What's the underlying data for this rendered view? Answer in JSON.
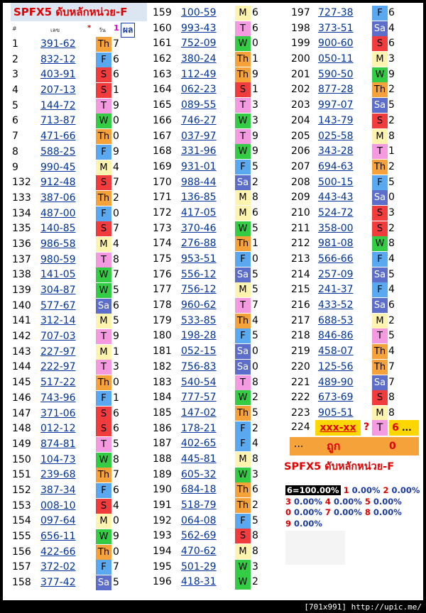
{
  "title": "SPFX5 ดับหลักหน่วย-F",
  "header": {
    "idx": "#",
    "num": "เลข",
    "star": "*",
    "day": "วัน",
    "one": "1",
    "res": "ผล"
  },
  "columns": [
    [
      {
        "i": "1",
        "n": "391-62",
        "d": "Th",
        "g": "7"
      },
      {
        "i": "2",
        "n": "832-12",
        "d": "F",
        "g": "6"
      },
      {
        "i": "3",
        "n": "403-91",
        "d": "S",
        "g": "6"
      },
      {
        "i": "4",
        "n": "207-13",
        "d": "S",
        "g": "1"
      },
      {
        "i": "5",
        "n": "144-72",
        "d": "T",
        "g": "9"
      },
      {
        "i": "6",
        "n": "713-87",
        "d": "W",
        "g": "0"
      },
      {
        "i": "7",
        "n": "471-66",
        "d": "Th",
        "g": "0"
      },
      {
        "i": "8",
        "n": "588-25",
        "d": "F",
        "g": "9"
      },
      {
        "i": "9",
        "n": "990-45",
        "d": "M",
        "g": "4"
      },
      {
        "i": "132",
        "n": "912-48",
        "d": "S",
        "g": "7"
      },
      {
        "i": "133",
        "n": "387-06",
        "d": "Th",
        "g": "2"
      },
      {
        "i": "134",
        "n": "487-00",
        "d": "F",
        "g": "0"
      },
      {
        "i": "135",
        "n": "140-85",
        "d": "S",
        "g": "7"
      },
      {
        "i": "136",
        "n": "986-58",
        "d": "M",
        "g": "4"
      },
      {
        "i": "137",
        "n": "980-59",
        "d": "T",
        "g": "8"
      },
      {
        "i": "138",
        "n": "141-05",
        "d": "W",
        "g": "7"
      },
      {
        "i": "139",
        "n": "304-87",
        "d": "W",
        "g": "5"
      },
      {
        "i": "140",
        "n": "577-67",
        "d": "Sa",
        "g": "6"
      },
      {
        "i": "141",
        "n": "312-14",
        "d": "M",
        "g": "5"
      },
      {
        "i": "142",
        "n": "707-03",
        "d": "T",
        "g": "9"
      },
      {
        "i": "143",
        "n": "227-97",
        "d": "M",
        "g": "1"
      },
      {
        "i": "144",
        "n": "222-97",
        "d": "T",
        "g": "3"
      },
      {
        "i": "145",
        "n": "517-22",
        "d": "Th",
        "g": "0"
      },
      {
        "i": "146",
        "n": "743-96",
        "d": "F",
        "g": "1"
      },
      {
        "i": "147",
        "n": "371-06",
        "d": "S",
        "g": "6"
      },
      {
        "i": "148",
        "n": "012-12",
        "d": "S",
        "g": "6"
      },
      {
        "i": "149",
        "n": "874-81",
        "d": "T",
        "g": "5"
      },
      {
        "i": "150",
        "n": "104-73",
        "d": "W",
        "g": "8"
      },
      {
        "i": "151",
        "n": "239-68",
        "d": "Th",
        "g": "7"
      },
      {
        "i": "152",
        "n": "387-34",
        "d": "F",
        "g": "6"
      },
      {
        "i": "153",
        "n": "008-10",
        "d": "S",
        "g": "4"
      },
      {
        "i": "154",
        "n": "097-64",
        "d": "M",
        "g": "0"
      },
      {
        "i": "155",
        "n": "656-11",
        "d": "W",
        "g": "9"
      },
      {
        "i": "156",
        "n": "422-66",
        "d": "Th",
        "g": "0"
      },
      {
        "i": "157",
        "n": "372-02",
        "d": "F",
        "g": "7"
      },
      {
        "i": "158",
        "n": "377-42",
        "d": "Sa",
        "g": "5"
      }
    ],
    [
      {
        "i": "159",
        "n": "100-59",
        "d": "M",
        "g": "6"
      },
      {
        "i": "160",
        "n": "993-43",
        "d": "T",
        "g": "6"
      },
      {
        "i": "161",
        "n": "752-09",
        "d": "W",
        "g": "0"
      },
      {
        "i": "162",
        "n": "380-24",
        "d": "Th",
        "g": "1"
      },
      {
        "i": "163",
        "n": "112-49",
        "d": "Th",
        "g": "9"
      },
      {
        "i": "164",
        "n": "062-23",
        "d": "S",
        "g": "1"
      },
      {
        "i": "165",
        "n": "089-55",
        "d": "T",
        "g": "3"
      },
      {
        "i": "166",
        "n": "746-27",
        "d": "W",
        "g": "3"
      },
      {
        "i": "167",
        "n": "037-97",
        "d": "T",
        "g": "9"
      },
      {
        "i": "168",
        "n": "331-96",
        "d": "W",
        "g": "9"
      },
      {
        "i": "169",
        "n": "931-01",
        "d": "F",
        "g": "5"
      },
      {
        "i": "170",
        "n": "988-44",
        "d": "Sa",
        "g": "2"
      },
      {
        "i": "171",
        "n": "136-85",
        "d": "M",
        "g": "8"
      },
      {
        "i": "172",
        "n": "417-05",
        "d": "M",
        "g": "6"
      },
      {
        "i": "173",
        "n": "370-46",
        "d": "W",
        "g": "5"
      },
      {
        "i": "174",
        "n": "276-88",
        "d": "Th",
        "g": "1"
      },
      {
        "i": "175",
        "n": "953-51",
        "d": "F",
        "g": "0"
      },
      {
        "i": "176",
        "n": "556-12",
        "d": "Sa",
        "g": "5"
      },
      {
        "i": "177",
        "n": "756-12",
        "d": "M",
        "g": "5"
      },
      {
        "i": "178",
        "n": "960-62",
        "d": "T",
        "g": "7"
      },
      {
        "i": "179",
        "n": "533-85",
        "d": "Th",
        "g": "4"
      },
      {
        "i": "180",
        "n": "198-28",
        "d": "F",
        "g": "5"
      },
      {
        "i": "181",
        "n": "052-15",
        "d": "Sa",
        "g": "0"
      },
      {
        "i": "182",
        "n": "756-83",
        "d": "Sa",
        "g": "0"
      },
      {
        "i": "183",
        "n": "540-54",
        "d": "T",
        "g": "8"
      },
      {
        "i": "184",
        "n": "777-57",
        "d": "W",
        "g": "2"
      },
      {
        "i": "185",
        "n": "147-02",
        "d": "Th",
        "g": "5"
      },
      {
        "i": "186",
        "n": "178-21",
        "d": "F",
        "g": "2"
      },
      {
        "i": "187",
        "n": "402-65",
        "d": "F",
        "g": "4"
      },
      {
        "i": "188",
        "n": "445-81",
        "d": "M",
        "g": "8"
      },
      {
        "i": "189",
        "n": "605-32",
        "d": "W",
        "g": "3"
      },
      {
        "i": "190",
        "n": "684-18",
        "d": "Th",
        "g": "6"
      },
      {
        "i": "191",
        "n": "518-79",
        "d": "Th",
        "g": "2"
      },
      {
        "i": "192",
        "n": "064-08",
        "d": "F",
        "g": "5"
      },
      {
        "i": "193",
        "n": "562-69",
        "d": "S",
        "g": "8"
      },
      {
        "i": "194",
        "n": "470-62",
        "d": "M",
        "g": "8"
      },
      {
        "i": "195",
        "n": "501-29",
        "d": "W",
        "g": "3"
      },
      {
        "i": "196",
        "n": "418-31",
        "d": "W",
        "g": "2"
      }
    ],
    [
      {
        "i": "197",
        "n": "727-38",
        "d": "F",
        "g": "6"
      },
      {
        "i": "198",
        "n": "373-51",
        "d": "Sa",
        "g": "4"
      },
      {
        "i": "199",
        "n": "900-60",
        "d": "S",
        "g": "6"
      },
      {
        "i": "200",
        "n": "050-11",
        "d": "M",
        "g": "3"
      },
      {
        "i": "201",
        "n": "590-50",
        "d": "W",
        "g": "9"
      },
      {
        "i": "202",
        "n": "877-28",
        "d": "Th",
        "g": "2"
      },
      {
        "i": "203",
        "n": "997-07",
        "d": "Sa",
        "g": "5"
      },
      {
        "i": "204",
        "n": "143-79",
        "d": "S",
        "g": "2"
      },
      {
        "i": "205",
        "n": "025-58",
        "d": "M",
        "g": "8"
      },
      {
        "i": "206",
        "n": "343-28",
        "d": "T",
        "g": "1"
      },
      {
        "i": "207",
        "n": "694-63",
        "d": "Th",
        "g": "2"
      },
      {
        "i": "208",
        "n": "500-15",
        "d": "F",
        "g": "5"
      },
      {
        "i": "209",
        "n": "443-43",
        "d": "Sa",
        "g": "0"
      },
      {
        "i": "210",
        "n": "524-72",
        "d": "S",
        "g": "3"
      },
      {
        "i": "211",
        "n": "358-00",
        "d": "S",
        "g": "2"
      },
      {
        "i": "212",
        "n": "981-08",
        "d": "W",
        "g": "8"
      },
      {
        "i": "213",
        "n": "566-66",
        "d": "F",
        "g": "4"
      },
      {
        "i": "214",
        "n": "257-09",
        "d": "Sa",
        "g": "5"
      },
      {
        "i": "215",
        "n": "241-37",
        "d": "F",
        "g": "4"
      },
      {
        "i": "216",
        "n": "433-52",
        "d": "Sa",
        "g": "6"
      },
      {
        "i": "217",
        "n": "688-53",
        "d": "M",
        "g": "2"
      },
      {
        "i": "218",
        "n": "846-86",
        "d": "T",
        "g": "5"
      },
      {
        "i": "219",
        "n": "458-07",
        "d": "Th",
        "g": "4"
      },
      {
        "i": "220",
        "n": "125-56",
        "d": "Th",
        "g": "7"
      },
      {
        "i": "221",
        "n": "489-90",
        "d": "Sa",
        "g": "7"
      },
      {
        "i": "222",
        "n": "673-69",
        "d": "S",
        "g": "8"
      },
      {
        "i": "223",
        "n": "905-51",
        "d": "M",
        "g": "8"
      }
    ]
  ],
  "prediction": {
    "i": "224",
    "n": "xxx-xx",
    "q": "?",
    "d": "T",
    "g": "6",
    "dots": "..."
  },
  "result": {
    "dots": "...",
    "word": "ถูก",
    "zero": "0"
  },
  "stats_title": "SPFX5 ดับหลักหน่วย-F",
  "stats": {
    "big": "6=100.00%",
    "rows": [
      [
        [
          "1",
          "0.00%"
        ],
        [
          "2",
          "0.00%"
        ]
      ],
      [
        [
          "3",
          "0.00%"
        ],
        [
          "4",
          "0.00%"
        ],
        [
          "5",
          "0.00%"
        ]
      ],
      [
        [
          "0",
          "0.00%"
        ],
        [
          "7",
          "0.00%"
        ],
        [
          "8",
          "0.00%"
        ]
      ],
      [
        [
          "9",
          "0.00%"
        ]
      ]
    ]
  },
  "footer": "[701x991] http://upic.me/"
}
